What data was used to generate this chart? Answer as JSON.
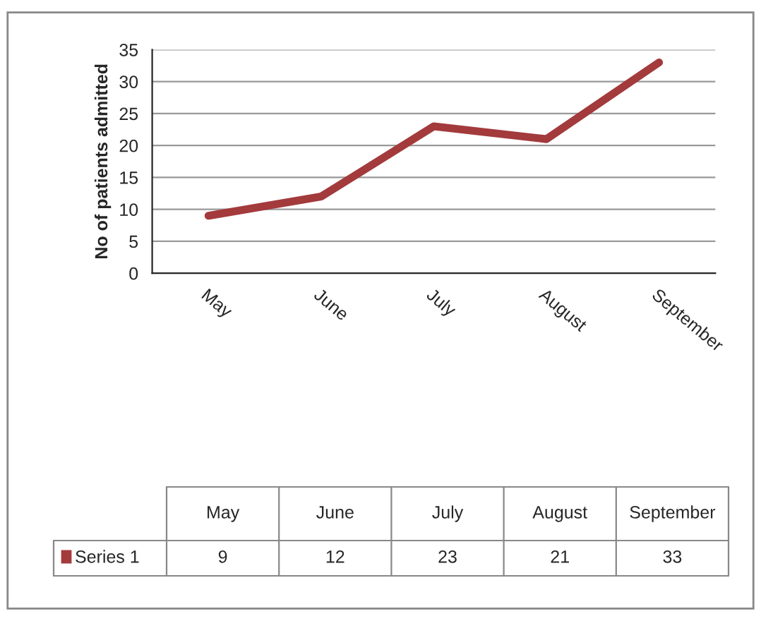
{
  "chart_data": {
    "type": "line",
    "ylabel": "No of patients admitted",
    "categories": [
      "May",
      "June",
      "July",
      "August",
      "September"
    ],
    "series": [
      {
        "name": "Series 1",
        "color": "#a33a3c",
        "values": [
          9,
          12,
          23,
          21,
          33
        ]
      }
    ],
    "ylim": [
      0,
      35
    ],
    "yticks": [
      0,
      5,
      10,
      15,
      20,
      25,
      30,
      35
    ],
    "grid": "y",
    "marker": "none",
    "line_style": "solid",
    "data_labels": true
  }
}
